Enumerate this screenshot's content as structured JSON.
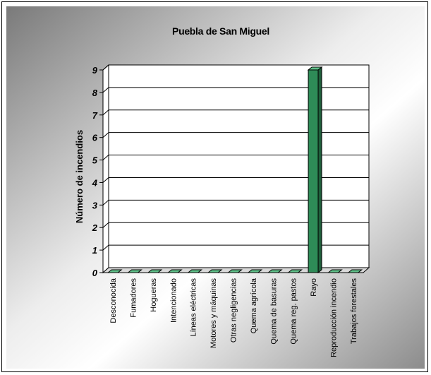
{
  "chart_data": {
    "type": "bar",
    "title": "Puebla de San Miguel",
    "xlabel": "",
    "ylabel": "Número de incendios",
    "ylim": [
      0,
      9
    ],
    "yticks": [
      0,
      1,
      2,
      3,
      4,
      5,
      6,
      7,
      8,
      9
    ],
    "grid": true,
    "categories": [
      "Desconocida",
      "Fumadores",
      "Hogueras",
      "Intencionado",
      "Líneas eléctricas",
      "Motores y máquinas",
      "Otras negligencias",
      "Quema agrícola",
      "Quema de basuras",
      "Quema reg. pastos",
      "Rayo",
      "Reproducción incendio",
      "Trabajos forestales"
    ],
    "values": [
      0,
      0,
      0,
      0,
      0,
      0,
      0,
      0,
      0,
      0,
      9,
      0,
      0
    ],
    "colors": {
      "bar_front": "#2e8b57",
      "bar_side": "#1f5e3b",
      "bar_top": "#5fbf88",
      "grid": "#000000",
      "background_dark": "#8c8c8c",
      "background_light": "#ffffff"
    }
  }
}
